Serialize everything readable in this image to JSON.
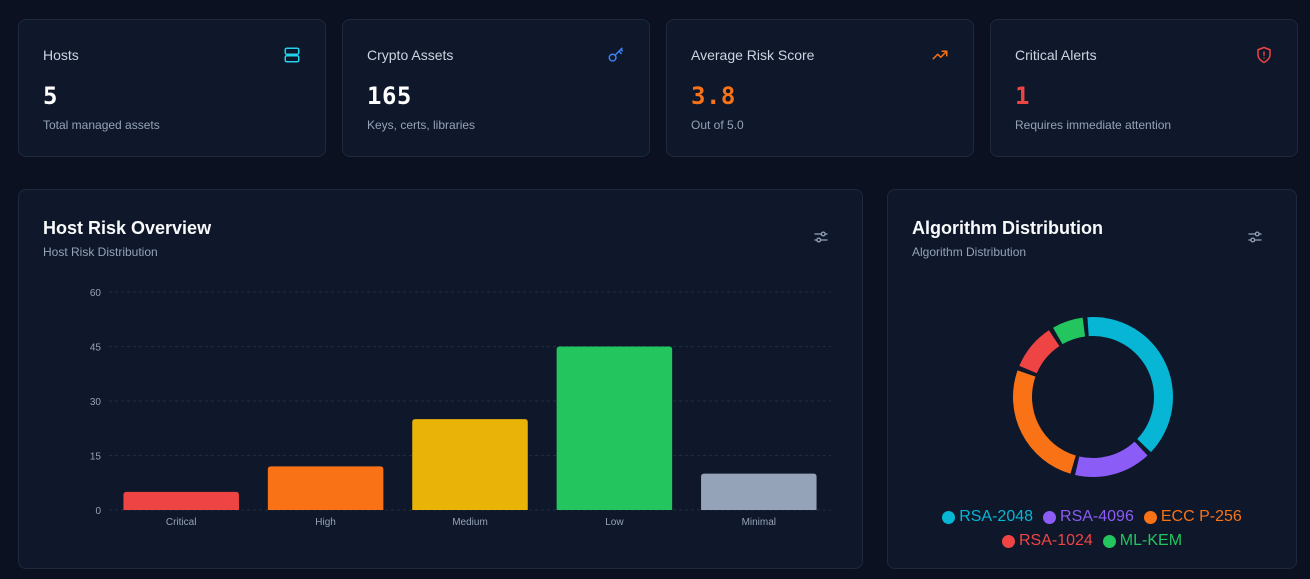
{
  "stats": [
    {
      "title": "Hosts",
      "value": "5",
      "sub": "Total managed assets",
      "icon": "server-icon",
      "value_color": "#ffffff",
      "icon_color": "#22d3ee"
    },
    {
      "title": "Crypto Assets",
      "value": "165",
      "sub": "Keys, certs, libraries",
      "icon": "key-icon",
      "value_color": "#ffffff",
      "icon_color": "#3b82f6"
    },
    {
      "title": "Average Risk Score",
      "value": "3.8",
      "sub": "Out of 5.0",
      "icon": "trending-up-icon",
      "value_color": "#f97316",
      "icon_color": "#f97316"
    },
    {
      "title": "Critical Alerts",
      "value": "1",
      "sub": "Requires immediate attention",
      "icon": "shield-alert-icon",
      "value_color": "#ef4444",
      "icon_color": "#ef4444"
    }
  ],
  "host_risk": {
    "title": "Host Risk Overview",
    "subtitle": "Host Risk Distribution"
  },
  "algo": {
    "title": "Algorithm Distribution",
    "subtitle": "Algorithm Distribution"
  },
  "chart_data": [
    {
      "type": "bar",
      "categories": [
        "Critical",
        "High",
        "Medium",
        "Low",
        "Minimal"
      ],
      "values": [
        5,
        12,
        25,
        45,
        10
      ],
      "colors": [
        "#ef4444",
        "#f97316",
        "#eab308",
        "#22c55e",
        "#94a3b8"
      ],
      "ylim": [
        0,
        60
      ],
      "yticks": [
        0,
        15,
        30,
        45,
        60
      ],
      "grid": true
    },
    {
      "type": "pie",
      "donut": true,
      "labels": [
        "RSA-2048",
        "RSA-4096",
        "ECC P-256",
        "RSA-1024",
        "ML-KEM"
      ],
      "values": [
        38,
        16,
        26,
        10,
        7
      ],
      "colors": [
        "#06b6d4",
        "#8b5cf6",
        "#f97316",
        "#ef4444",
        "#22c55e"
      ],
      "legend": "bottom"
    }
  ]
}
